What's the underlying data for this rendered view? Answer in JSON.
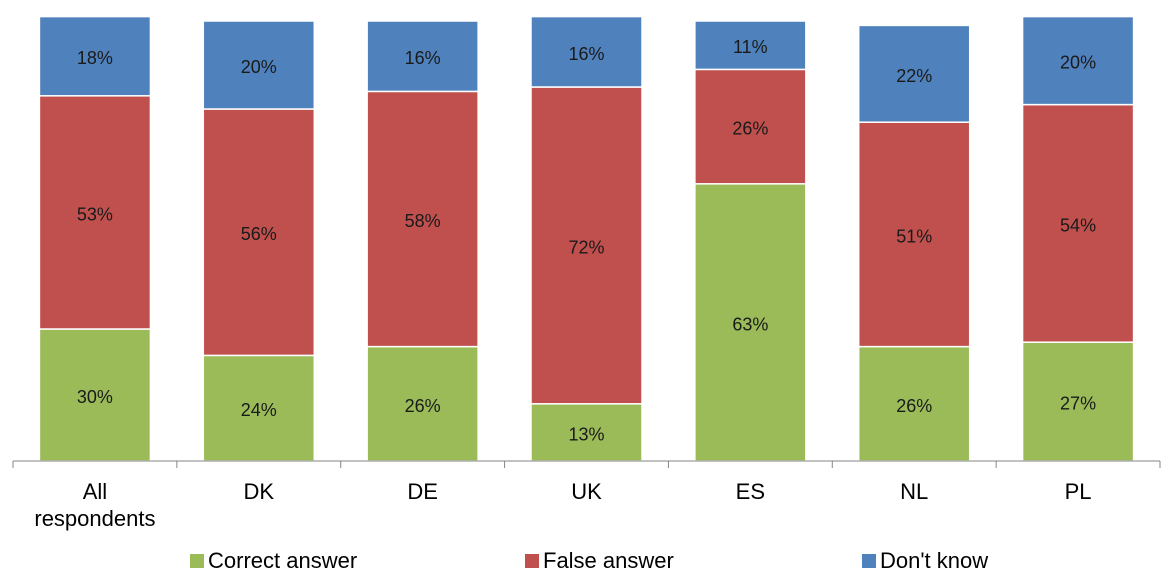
{
  "chart_data": {
    "type": "bar",
    "stacked": true,
    "categories": [
      "All respondents",
      "DK",
      "DE",
      "UK",
      "ES",
      "NL",
      "PL"
    ],
    "series": [
      {
        "name": "Correct answer",
        "color": "#9bbb59",
        "values": [
          30,
          24,
          26,
          13,
          63,
          26,
          27
        ],
        "labels": [
          "30%",
          "24%",
          "26%",
          "13%",
          "63%",
          "26%",
          "27%"
        ]
      },
      {
        "name": "False answer",
        "color": "#c0504d",
        "values": [
          53,
          56,
          58,
          72,
          26,
          51,
          54
        ],
        "labels": [
          "53%",
          "56%",
          "58%",
          "72%",
          "26%",
          "51%",
          "54%"
        ]
      },
      {
        "name": "Don't know",
        "color": "#4f81bd",
        "values": [
          18,
          20,
          16,
          16,
          11,
          22,
          20
        ],
        "labels": [
          "18%",
          "20%",
          "16%",
          "16%",
          "11%",
          "22%",
          "20%"
        ]
      }
    ],
    "ylim": [
      0,
      100
    ],
    "grid": false,
    "legend_position": "bottom",
    "title": "",
    "xlabel": "",
    "ylabel": ""
  }
}
